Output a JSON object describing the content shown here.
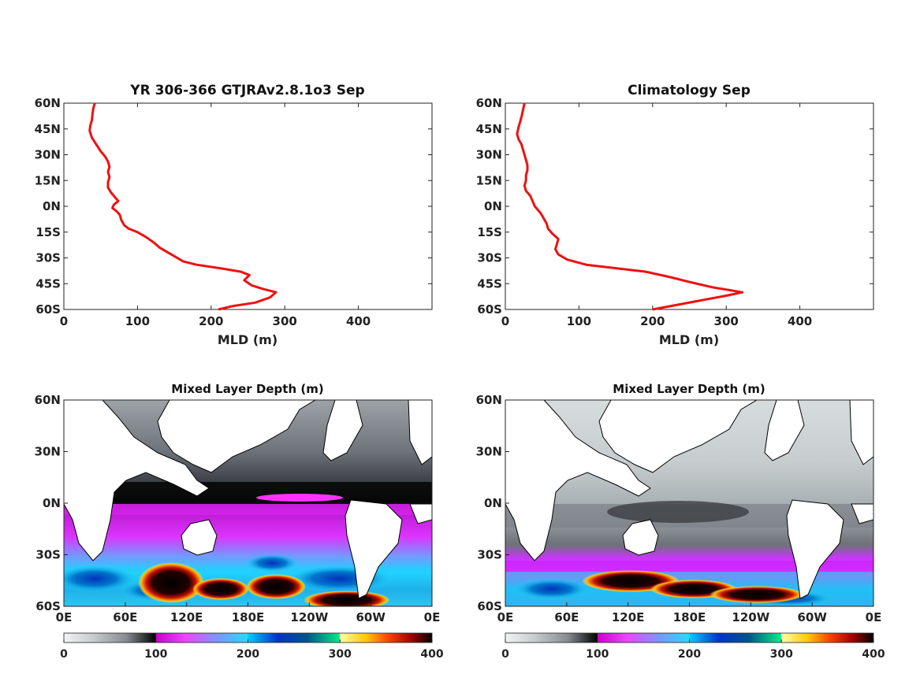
{
  "colors": {
    "profile_line": "#ee1111",
    "land": "#ffffff",
    "coast": "#000000"
  },
  "chart_data": [
    {
      "id": "profile_model",
      "type": "line",
      "title": "YR 306-366 GTJRAv2.8.1o3 Sep",
      "xlabel": "MLD (m)",
      "ylabel": "",
      "xlim": [
        0,
        500
      ],
      "ylim": [
        -60,
        60
      ],
      "xticks": [
        0,
        100,
        200,
        300,
        400
      ],
      "yticks": [
        {
          "v": 60,
          "label": "60N"
        },
        {
          "v": 45,
          "label": "45N"
        },
        {
          "v": 30,
          "label": "30N"
        },
        {
          "v": 15,
          "label": "15N"
        },
        {
          "v": 0,
          "label": "0N"
        },
        {
          "v": -15,
          "label": "15S"
        },
        {
          "v": -30,
          "label": "30S"
        },
        {
          "v": -45,
          "label": "45S"
        },
        {
          "v": -60,
          "label": "60S"
        }
      ],
      "series": [
        {
          "points": [
            [
              42,
              60
            ],
            [
              40,
              57
            ],
            [
              39,
              54
            ],
            [
              38,
              50
            ],
            [
              36,
              47
            ],
            [
              35,
              44
            ],
            [
              38,
              40
            ],
            [
              44,
              36
            ],
            [
              50,
              32
            ],
            [
              56,
              29
            ],
            [
              60,
              26
            ],
            [
              62,
              23
            ],
            [
              60,
              20
            ],
            [
              62,
              17
            ],
            [
              60,
              14
            ],
            [
              60,
              11
            ],
            [
              64,
              8
            ],
            [
              70,
              5
            ],
            [
              74,
              3
            ],
            [
              68,
              1
            ],
            [
              66,
              -1
            ],
            [
              72,
              -3
            ],
            [
              76,
              -5
            ],
            [
              78,
              -8
            ],
            [
              82,
              -11
            ],
            [
              88,
              -13
            ],
            [
              100,
              -15
            ],
            [
              112,
              -18
            ],
            [
              122,
              -21
            ],
            [
              130,
              -24
            ],
            [
              138,
              -26
            ],
            [
              150,
              -29
            ],
            [
              162,
              -32
            ],
            [
              180,
              -34
            ],
            [
              212,
              -36
            ],
            [
              240,
              -38
            ],
            [
              252,
              -40
            ],
            [
              245,
              -43
            ],
            [
              255,
              -46
            ],
            [
              270,
              -48
            ],
            [
              288,
              -50
            ],
            [
              280,
              -53
            ],
            [
              260,
              -56
            ],
            [
              230,
              -58
            ],
            [
              210,
              -60
            ]
          ]
        }
      ]
    },
    {
      "id": "profile_clim",
      "type": "line",
      "title": "Climatology Sep",
      "xlabel": "MLD (m)",
      "ylabel": "",
      "xlim": [
        0,
        500
      ],
      "ylim": [
        -60,
        60
      ],
      "xticks": [
        0,
        100,
        200,
        300,
        400
      ],
      "yticks": [
        {
          "v": 60,
          "label": "60N"
        },
        {
          "v": 45,
          "label": "45N"
        },
        {
          "v": 30,
          "label": "30N"
        },
        {
          "v": 15,
          "label": "15N"
        },
        {
          "v": 0,
          "label": "0N"
        },
        {
          "v": -15,
          "label": "15S"
        },
        {
          "v": -30,
          "label": "30S"
        },
        {
          "v": -45,
          "label": "45S"
        },
        {
          "v": -60,
          "label": "60S"
        }
      ],
      "series": [
        {
          "points": [
            [
              26,
              60
            ],
            [
              24,
              56
            ],
            [
              22,
              52
            ],
            [
              20,
              49
            ],
            [
              18,
              46
            ],
            [
              16,
              42
            ],
            [
              18,
              39
            ],
            [
              22,
              36
            ],
            [
              24,
              33
            ],
            [
              26,
              30
            ],
            [
              28,
              27
            ],
            [
              30,
              24
            ],
            [
              30,
              21
            ],
            [
              28,
              18
            ],
            [
              28,
              15
            ],
            [
              26,
              12
            ],
            [
              28,
              9
            ],
            [
              34,
              6
            ],
            [
              38,
              2
            ],
            [
              40,
              0
            ],
            [
              44,
              -2
            ],
            [
              48,
              -4
            ],
            [
              52,
              -7
            ],
            [
              56,
              -10
            ],
            [
              58,
              -13
            ],
            [
              64,
              -16
            ],
            [
              72,
              -19
            ],
            [
              70,
              -22
            ],
            [
              68,
              -25
            ],
            [
              72,
              -28
            ],
            [
              84,
              -31
            ],
            [
              110,
              -34
            ],
            [
              150,
              -36
            ],
            [
              190,
              -38
            ],
            [
              222,
              -41
            ],
            [
              250,
              -44
            ],
            [
              280,
              -47
            ],
            [
              322,
              -50
            ],
            [
              300,
              -52
            ],
            [
              262,
              -55
            ],
            [
              225,
              -58
            ],
            [
              200,
              -60
            ]
          ]
        }
      ]
    },
    {
      "id": "map_model",
      "type": "heatmap",
      "title": "Mixed Layer Depth (m)",
      "xticks": [
        "0E",
        "60E",
        "120E",
        "180E",
        "120W",
        "60W",
        "0E"
      ],
      "yticks": [
        "60N",
        "30N",
        "0N",
        "30S",
        "60S"
      ],
      "colorbar": {
        "range": [
          0,
          400
        ],
        "ticks": [
          "0",
          "100",
          "200",
          "300",
          "400"
        ]
      }
    },
    {
      "id": "map_clim",
      "type": "heatmap",
      "title": "Mixed Layer Depth (m)",
      "xticks": [
        "0E",
        "60E",
        "120E",
        "180E",
        "120W",
        "60W",
        "0E"
      ],
      "yticks": [
        "60N",
        "30N",
        "0N",
        "30S",
        "60S"
      ],
      "colorbar": {
        "range": [
          0,
          400
        ],
        "ticks": [
          "0",
          "100",
          "200",
          "300",
          "400"
        ]
      }
    }
  ]
}
